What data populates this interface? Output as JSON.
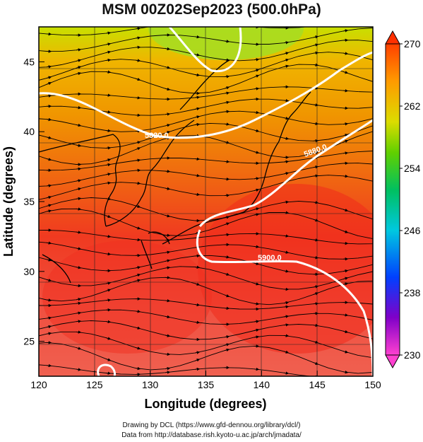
{
  "title": "MSM 00Z02Sep2023 (500.0hPa)",
  "xaxis": {
    "label": "Longitude (degrees)",
    "ticks": [
      "120",
      "125",
      "130",
      "135",
      "140",
      "145",
      "150"
    ],
    "range": [
      120,
      150
    ]
  },
  "yaxis": {
    "label": "Latitude  (degrees)",
    "ticks": [
      "25",
      "30",
      "35",
      "40",
      "45"
    ],
    "range": [
      22.5,
      47.5
    ]
  },
  "colorbar": {
    "ticks": [
      "270",
      "262",
      "254",
      "246",
      "238",
      "230"
    ],
    "range": [
      230,
      270
    ]
  },
  "contours": [
    {
      "label": "5820.0"
    },
    {
      "label": "5880.0"
    },
    {
      "label": "5900.0"
    }
  ],
  "footer": {
    "line1": "Drawing by DCL (https://www.gfd-dennou.org/library/dcl/)",
    "line2": "Data from http://database.rish.kyoto-u.ac.jp/arch/jmadata/"
  }
}
